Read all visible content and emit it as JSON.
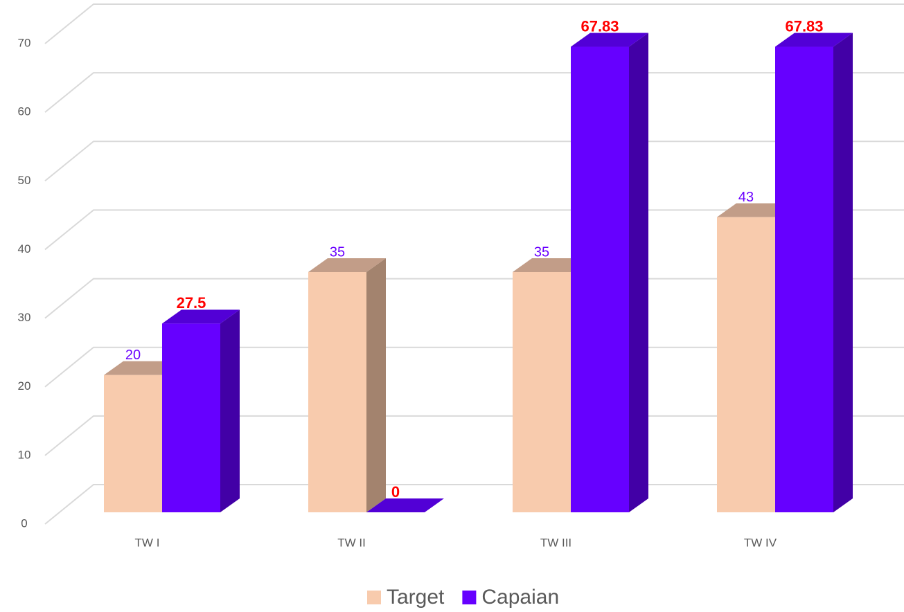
{
  "chart_data": {
    "type": "bar3d",
    "categories": [
      "TW I",
      "TW II",
      "TW III",
      "TW IV"
    ],
    "series": [
      {
        "name": "Target",
        "color": "#f8cbad",
        "top": "#c29d88",
        "side": "#a3836e",
        "label_color": "#6a00ff",
        "values": [
          20,
          35,
          35,
          43
        ]
      },
      {
        "name": "Capaian",
        "color": "#6600ff",
        "top": "#5200d6",
        "side": "#4200a6",
        "label_color": "#ff0000",
        "values": [
          27.5,
          0,
          67.83,
          67.83
        ]
      }
    ],
    "ylim": [
      0,
      70
    ],
    "yticks": [
      0,
      10,
      20,
      30,
      40,
      50,
      60,
      70
    ],
    "grid": true,
    "legend": "bottom"
  }
}
